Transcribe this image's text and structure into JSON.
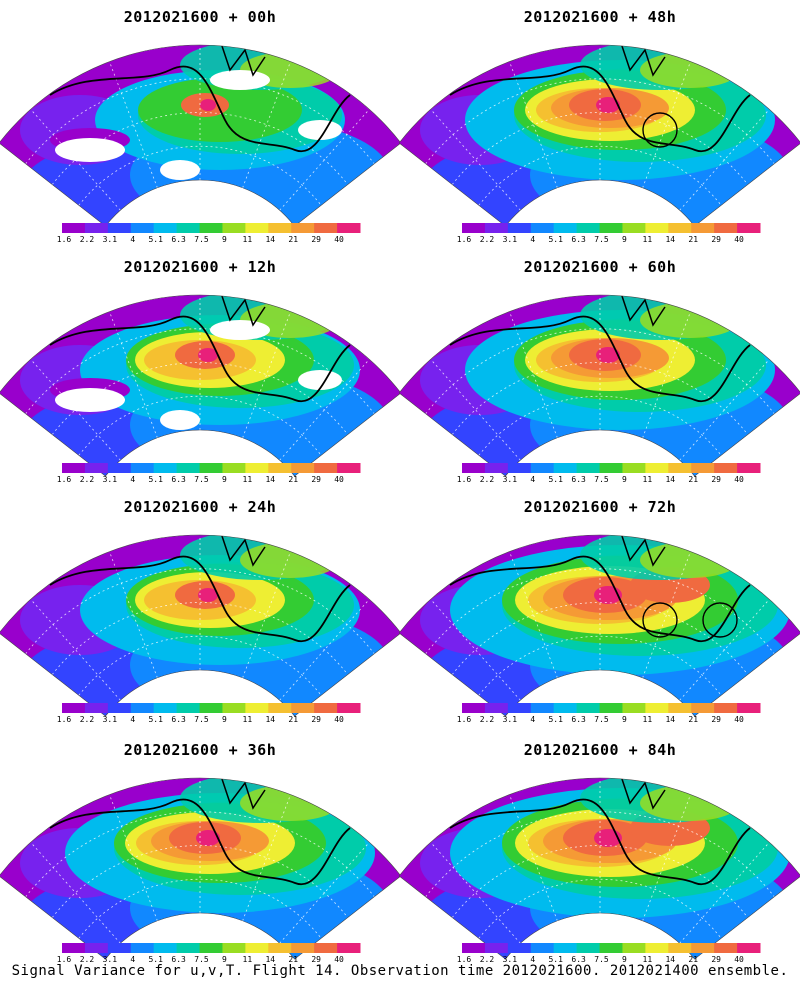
{
  "panels": [
    {
      "title": "2012021600 + 00h",
      "lead": 0,
      "peak": 1,
      "overlay": "white-gaps"
    },
    {
      "title": "2012021600 + 48h",
      "lead": 48,
      "peak": 3,
      "circles": 1
    },
    {
      "title": "2012021600 + 12h",
      "lead": 12,
      "peak": 2,
      "overlay": "white-gaps"
    },
    {
      "title": "2012021600 + 60h",
      "lead": 60,
      "peak": 3,
      "circles": 0
    },
    {
      "title": "2012021600 + 24h",
      "lead": 24,
      "peak": 2,
      "circles": 0
    },
    {
      "title": "2012021600 + 72h",
      "lead": 72,
      "peak": 4,
      "circles": 2
    },
    {
      "title": "2012021600 + 36h",
      "lead": 36,
      "peak": 3,
      "circles": 0
    },
    {
      "title": "2012021600 + 84h",
      "lead": 84,
      "peak": 4,
      "circles": 0
    }
  ],
  "colorbar": {
    "ticks": [
      "1.6",
      "2.2",
      "3.1",
      "4",
      "5.1",
      "6.3",
      "7.5",
      "9",
      "11",
      "14",
      "21",
      "29",
      "40"
    ],
    "colors": [
      "#9900cc",
      "#7722ee",
      "#3344ff",
      "#1188ff",
      "#00bbee",
      "#00ccaa",
      "#33cc33",
      "#99dd22",
      "#eeee33",
      "#f5c030",
      "#f59a35",
      "#f06a40",
      "#e8207a"
    ]
  },
  "caption": "Signal Variance for u,v,T. Flight 14. Observation time 2012021600. 2012021400 ensemble."
}
